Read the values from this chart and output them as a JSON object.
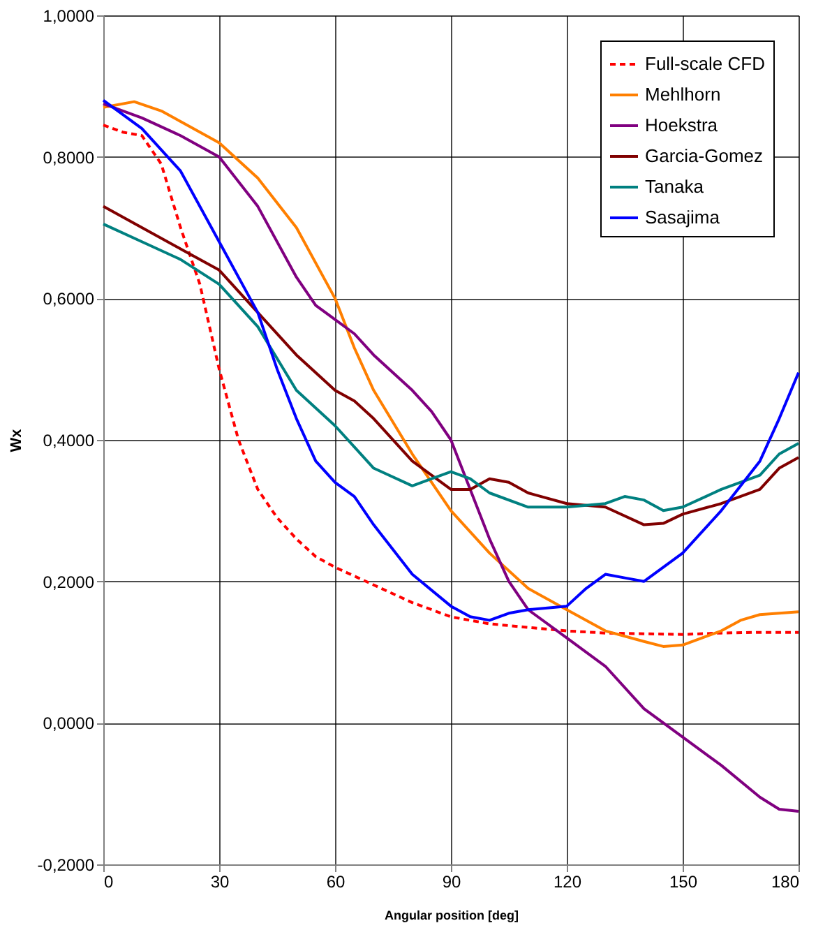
{
  "chart_data": {
    "type": "line",
    "xlabel": "Angular position [deg]",
    "ylabel": "Wx",
    "xlim": [
      0,
      180
    ],
    "xticks": [
      0,
      30,
      60,
      90,
      120,
      150,
      180
    ],
    "ylim": [
      -0.2,
      1.0
    ],
    "yticks": [
      {
        "value": -0.2,
        "label": "-0,2000"
      },
      {
        "value": 0,
        "label": "0,0000"
      },
      {
        "value": 0.2,
        "label": "0,2000"
      },
      {
        "value": 0.4,
        "label": "0,4000"
      },
      {
        "value": 0.6,
        "label": "0,6000"
      },
      {
        "value": 0.8,
        "label": "0,8000"
      },
      {
        "value": 1.0,
        "label": "1,0000"
      }
    ],
    "grid": true,
    "legend": "top right",
    "marker": "none",
    "series": [
      {
        "name": "Full-scale CFD",
        "color": "#ff0000",
        "line_style": "dashed",
        "x": [
          0,
          5,
          10,
          15,
          20,
          25,
          30,
          35,
          40,
          45,
          50,
          55,
          60,
          70,
          80,
          90,
          100,
          110,
          120,
          130,
          140,
          150,
          160,
          170,
          180
        ],
        "values": [
          0.845,
          0.835,
          0.83,
          0.79,
          0.7,
          0.62,
          0.5,
          0.4,
          0.33,
          0.29,
          0.26,
          0.235,
          0.22,
          0.195,
          0.17,
          0.15,
          0.14,
          0.135,
          0.13,
          0.127,
          0.126,
          0.125,
          0.127,
          0.128,
          0.128
        ]
      },
      {
        "name": "Mehlhorn",
        "color": "#ff7f00",
        "line_style": "solid",
        "x": [
          0,
          8,
          15,
          20,
          30,
          40,
          50,
          60,
          65,
          70,
          80,
          90,
          100,
          110,
          120,
          130,
          140,
          145,
          150,
          160,
          165,
          170,
          180
        ],
        "values": [
          0.87,
          0.878,
          0.865,
          0.85,
          0.82,
          0.77,
          0.7,
          0.6,
          0.53,
          0.47,
          0.38,
          0.3,
          0.24,
          0.19,
          0.16,
          0.13,
          0.115,
          0.108,
          0.11,
          0.13,
          0.145,
          0.153,
          0.157
        ]
      },
      {
        "name": "Hoekstra",
        "color": "#800080",
        "line_style": "solid",
        "x": [
          0,
          10,
          20,
          30,
          40,
          50,
          55,
          60,
          65,
          70,
          80,
          85,
          90,
          95,
          100,
          105,
          110,
          120,
          130,
          140,
          150,
          160,
          170,
          175,
          180
        ],
        "values": [
          0.875,
          0.855,
          0.83,
          0.8,
          0.73,
          0.63,
          0.59,
          0.57,
          0.55,
          0.52,
          0.47,
          0.44,
          0.4,
          0.33,
          0.26,
          0.2,
          0.16,
          0.12,
          0.08,
          0.02,
          -0.02,
          -0.06,
          -0.105,
          -0.122,
          -0.125
        ]
      },
      {
        "name": "Garcia-Gomez",
        "color": "#800000",
        "line_style": "solid",
        "x": [
          0,
          10,
          20,
          30,
          40,
          50,
          60,
          65,
          70,
          80,
          90,
          95,
          100,
          105,
          110,
          120,
          130,
          140,
          145,
          150,
          160,
          170,
          175,
          180
        ],
        "values": [
          0.73,
          0.7,
          0.67,
          0.64,
          0.58,
          0.52,
          0.47,
          0.455,
          0.43,
          0.37,
          0.33,
          0.33,
          0.345,
          0.34,
          0.325,
          0.31,
          0.305,
          0.28,
          0.282,
          0.295,
          0.31,
          0.33,
          0.36,
          0.375
        ]
      },
      {
        "name": "Tanaka",
        "color": "#008080",
        "line_style": "solid",
        "x": [
          0,
          10,
          20,
          30,
          40,
          50,
          60,
          70,
          80,
          85,
          90,
          95,
          100,
          110,
          120,
          130,
          135,
          140,
          145,
          150,
          160,
          170,
          175,
          180
        ],
        "values": [
          0.705,
          0.68,
          0.655,
          0.62,
          0.56,
          0.47,
          0.42,
          0.36,
          0.335,
          0.345,
          0.355,
          0.345,
          0.325,
          0.305,
          0.305,
          0.31,
          0.32,
          0.315,
          0.3,
          0.305,
          0.33,
          0.35,
          0.38,
          0.395
        ]
      },
      {
        "name": "Sasajima",
        "color": "#0000ff",
        "line_style": "solid",
        "x": [
          0,
          10,
          20,
          30,
          40,
          45,
          50,
          55,
          60,
          65,
          70,
          80,
          90,
          95,
          100,
          105,
          110,
          120,
          125,
          130,
          135,
          140,
          150,
          160,
          170,
          175,
          180
        ],
        "values": [
          0.88,
          0.84,
          0.78,
          0.68,
          0.58,
          0.5,
          0.43,
          0.37,
          0.34,
          0.32,
          0.28,
          0.21,
          0.165,
          0.15,
          0.145,
          0.155,
          0.16,
          0.165,
          0.19,
          0.21,
          0.205,
          0.2,
          0.24,
          0.3,
          0.37,
          0.43,
          0.495
        ]
      }
    ]
  }
}
